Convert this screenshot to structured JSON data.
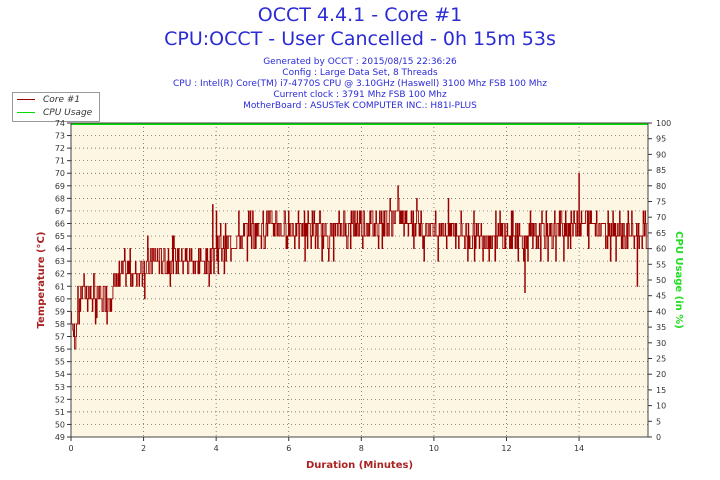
{
  "header": {
    "title": "OCCT 4.4.1 - Core #1",
    "subtitle": "CPU:OCCT - User Cancelled - 0h 15m 53s",
    "info_lines": [
      "Generated by OCCT : 2015/08/15 22:36:26",
      "Config : Large Data Set, 8 Threads",
      "CPU : Intel(R) Core(TM) i7-4770S CPU @ 3.10GHz (Haswell) 3100 Mhz FSB 100 Mhz",
      "Current clock : 3791 Mhz FSB 100 Mhz",
      "MotherBoard : ASUSTeK COMPUTER INC.: H81I-PLUS"
    ]
  },
  "colors": {
    "core": "#990000",
    "cpu_usage": "#00dd00",
    "plot_bg": "#fdf6e3",
    "title": "#2b2bd6",
    "left_axis_label": "#aa2222",
    "right_axis_label": "#22dd22"
  },
  "chart_data": {
    "type": "line",
    "xlabel": "Duration (Minutes)",
    "ylabel": "Temperature (°C)",
    "y2label": "CPU Usage (in %)",
    "xlim": [
      0,
      15.9
    ],
    "ylim": [
      49,
      74
    ],
    "y2lim": [
      0,
      100
    ],
    "x_ticks": [
      0,
      2,
      4,
      6,
      8,
      10,
      12,
      14
    ],
    "y_ticks": [
      49,
      50,
      51,
      52,
      53,
      54,
      55,
      56,
      57,
      58,
      59,
      60,
      61,
      62,
      63,
      64,
      65,
      66,
      67,
      68,
      69,
      70,
      71,
      72,
      73,
      74
    ],
    "y2_ticks": [
      0,
      5,
      10,
      15,
      20,
      25,
      30,
      35,
      40,
      45,
      50,
      55,
      60,
      65,
      70,
      75,
      80,
      85,
      90,
      95,
      100
    ],
    "grid": true,
    "legend_position": "top-left",
    "series": [
      {
        "name": "Core #1",
        "axis": "left",
        "trend": [
          [
            0,
            59
          ],
          [
            0.1,
            57
          ],
          [
            0.3,
            61
          ],
          [
            0.6,
            60
          ],
          [
            1.0,
            60
          ],
          [
            1.4,
            62
          ],
          [
            1.8,
            62
          ],
          [
            2.2,
            63
          ],
          [
            2.6,
            63
          ],
          [
            3.0,
            63
          ],
          [
            3.4,
            63
          ],
          [
            3.8,
            63
          ],
          [
            4.0,
            64
          ],
          [
            4.5,
            64.5
          ],
          [
            5.0,
            65.5
          ],
          [
            5.5,
            66
          ],
          [
            6.0,
            65.5
          ],
          [
            6.5,
            65.5
          ],
          [
            7.0,
            65
          ],
          [
            7.5,
            65.5
          ],
          [
            8.0,
            66
          ],
          [
            8.5,
            66
          ],
          [
            9.0,
            66.5
          ],
          [
            9.5,
            66
          ],
          [
            10.0,
            65.5
          ],
          [
            10.5,
            65.5
          ],
          [
            11.0,
            65
          ],
          [
            11.5,
            65
          ],
          [
            12.0,
            65
          ],
          [
            12.5,
            65
          ],
          [
            13.0,
            65
          ],
          [
            13.5,
            65.5
          ],
          [
            14.0,
            66
          ],
          [
            14.5,
            66
          ],
          [
            15.0,
            65.5
          ],
          [
            15.5,
            65
          ],
          [
            15.9,
            65
          ]
        ],
        "max_points": [
          [
            0.05,
            62
          ],
          [
            3.9,
            67.5
          ],
          [
            4.0,
            67
          ],
          [
            9.0,
            69
          ],
          [
            14.0,
            70
          ]
        ],
        "min_points": [
          [
            0.05,
            57.5
          ],
          [
            0.7,
            58.5
          ],
          [
            12.5,
            60.5
          ],
          [
            15.6,
            61
          ]
        ]
      },
      {
        "name": "CPU Usage",
        "axis": "right",
        "x": [
          0,
          15.9
        ],
        "values": [
          100,
          100
        ]
      }
    ]
  }
}
